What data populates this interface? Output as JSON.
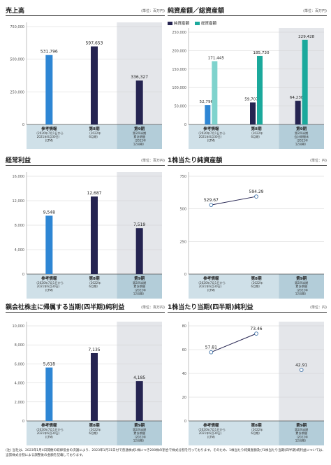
{
  "colors": {
    "blue": "#2e86d4",
    "navy": "#252451",
    "teal": "#1ba99c",
    "light_teal": "#7fd3cd",
    "label_band": "#cfe0e8",
    "label_band_dark": "#b3cdd9",
    "shade": "#e4e6ea",
    "line": "#ffffff",
    "gray_text": "#555555"
  },
  "x_categories": [
    {
      "name": "参考情報",
      "sub": [
        "（2020年7月1日から",
        "2021年6月30日）",
        "(LTM)"
      ]
    },
    {
      "name": "第8期",
      "sub": [
        "（2022年",
        "6月期）"
      ]
    },
    {
      "name": "第9期",
      "sub": [
        "第2四半期",
        "累計期間",
        "（2022年",
        "12月期）"
      ]
    }
  ],
  "x_categories_bs": [
    {
      "name": "参考情報",
      "sub": [
        "（2020年7月1日から",
        "2021年6月30日）",
        "(LTM)"
      ]
    },
    {
      "name": "第8期",
      "sub": [
        "（2022年",
        "6月期）"
      ]
    },
    {
      "name": "第9期",
      "sub": [
        "第2四半期",
        "会計期間末",
        "（2022年",
        "12月期）"
      ]
    }
  ],
  "charts": {
    "sales": {
      "title": "売上高",
      "unit": "(単位：百万円)",
      "chart_data": {
        "type": "bar",
        "title": "売上高",
        "categories": [
          "参考情報",
          "第8期",
          "第9期"
        ],
        "values": [
          531796,
          597653,
          336327
        ],
        "value_labels": [
          "531,796",
          "597,653",
          "336,327"
        ],
        "yticks": [
          0,
          250000,
          500000,
          750000
        ],
        "ytick_labels": [
          "0",
          "250,000",
          "500,000",
          "750,000"
        ],
        "ylim": [
          0,
          750000
        ],
        "bar_colors": [
          "#2e86d4",
          "#252451",
          "#252451"
        ],
        "shaded_last": true
      }
    },
    "net_assets": {
      "title": "純資産額／総資産額",
      "unit": "(単位：百万円)",
      "legend": [
        {
          "label": "純資産額",
          "color": "#252451"
        },
        {
          "label": "総資産額",
          "color": "#1ba99c"
        }
      ],
      "chart_data": {
        "type": "bar",
        "title": "純資産額／総資産額",
        "categories": [
          "参考情報",
          "第8期",
          "第9期"
        ],
        "series": [
          {
            "name": "純資産額",
            "values": [
              52796,
              59707,
              64238
            ],
            "labels": [
              "52,796",
              "59,707",
              "64,238"
            ],
            "colors": [
              "#2e86d4",
              "#252451",
              "#252451"
            ]
          },
          {
            "name": "総資産額",
            "values": [
              171445,
              185730,
              229428
            ],
            "labels": [
              "171,445",
              "185,730",
              "229,428"
            ],
            "colors": [
              "#7fd3cd",
              "#1ba99c",
              "#1ba99c"
            ]
          }
        ],
        "yticks": [
          0,
          50000,
          100000,
          150000,
          200000,
          250000
        ],
        "ytick_labels": [
          "0",
          "50,000",
          "100,000",
          "150,000",
          "200,000",
          "250,000"
        ],
        "ylim": [
          0,
          250000
        ],
        "shaded_last": true
      }
    },
    "ordinary_income": {
      "title": "経常利益",
      "unit": "(単位：百万円)",
      "chart_data": {
        "type": "bar",
        "title": "経常利益",
        "categories": [
          "参考情報",
          "第8期",
          "第9期"
        ],
        "values": [
          9548,
          12687,
          7519
        ],
        "value_labels": [
          "9,548",
          "12,687",
          "7,519"
        ],
        "yticks": [
          0,
          4000,
          8000,
          12000,
          16000
        ],
        "ytick_labels": [
          "0",
          "4,000",
          "8,000",
          "12,000",
          "16,000"
        ],
        "ylim": [
          0,
          16000
        ],
        "bar_colors": [
          "#2e86d4",
          "#252451",
          "#252451"
        ],
        "shaded_last": true
      }
    },
    "bps": {
      "title": "1株当たり純資産額",
      "unit": "(単位：円)",
      "chart_data": {
        "type": "line",
        "title": "1株当たり純資産額",
        "categories": [
          "参考情報",
          "第8期"
        ],
        "values": [
          529.67,
          594.29
        ],
        "value_labels": [
          "529.67",
          "594.29"
        ],
        "yticks": [
          0,
          250,
          500,
          750
        ],
        "ytick_labels": [
          "0",
          "250",
          "500",
          "750"
        ],
        "ylim": [
          0,
          750
        ],
        "shaded_last": false
      }
    },
    "net_income": {
      "title": "親会社株主に帰属する当期(四半期)純利益",
      "unit": "(単位：百万円)",
      "chart_data": {
        "type": "bar",
        "title": "親会社株主に帰属する当期(四半期)純利益",
        "categories": [
          "参考情報",
          "第8期",
          "第9期"
        ],
        "values": [
          5618,
          7135,
          4185
        ],
        "value_labels": [
          "5,618",
          "7,135",
          "4,185"
        ],
        "yticks": [
          0,
          2000,
          4000,
          6000,
          8000,
          10000
        ],
        "ytick_labels": [
          "0",
          "2,000",
          "4,000",
          "6,000",
          "8,000",
          "10,000"
        ],
        "ylim": [
          0,
          10000
        ],
        "bar_colors": [
          "#2e86d4",
          "#252451",
          "#252451"
        ],
        "shaded_last": true
      }
    },
    "eps": {
      "title": "1株当たり当期(四半期)純利益",
      "unit": "(単位：円)",
      "chart_data": {
        "type": "line",
        "title": "1株当たり当期(四半期)純利益",
        "categories": [
          "参考情報",
          "第8期",
          "第9期"
        ],
        "values": [
          57.81,
          73.46,
          42.91
        ],
        "value_labels": [
          "57.81",
          "73.46",
          "42.91"
        ],
        "line_connect": [
          true,
          true,
          false
        ],
        "yticks": [
          0,
          20,
          40,
          60,
          80
        ],
        "ytick_labels": [
          "0",
          "20",
          "40",
          "60",
          "80"
        ],
        "ylim": [
          0,
          80
        ],
        "shaded_last": true
      }
    }
  },
  "footnote": "(注) 当社は、2023年1月4日開催の取締役会の決議により、2023年1月31日付で普通株式1株につき200株の割合で株式分割を行っております。そのため、1株当たり純資産額及び1株当たり当期(四半期)純利益については、当該株式分割による調整後の金額を記載しております。"
}
